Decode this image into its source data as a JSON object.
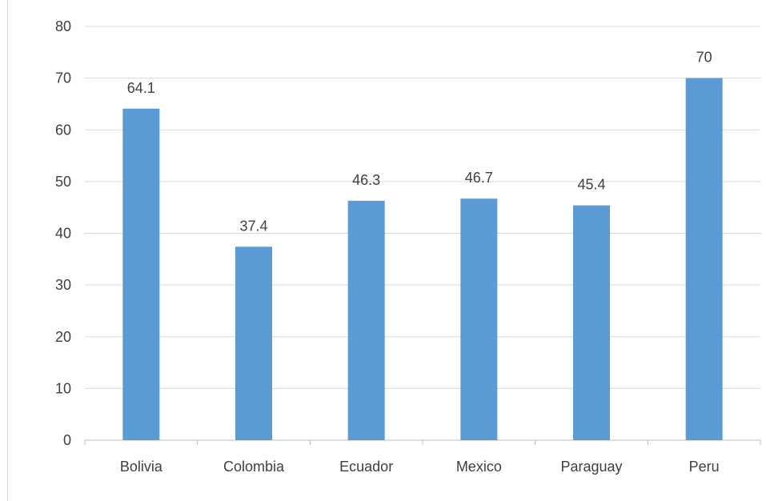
{
  "chart_data": {
    "type": "bar",
    "title": "",
    "xlabel": "",
    "ylabel": "",
    "categories": [
      "Bolivia",
      "Colombia",
      "Ecuador",
      "Mexico",
      "Paraguay",
      "Peru"
    ],
    "values": [
      64.1,
      37.4,
      46.3,
      46.7,
      45.4,
      70
    ],
    "data_labels": [
      "64.1",
      "37.4",
      "46.3",
      "46.7",
      "45.4",
      "70"
    ],
    "ylim": [
      0,
      80
    ],
    "yticks": [
      0,
      10,
      20,
      30,
      40,
      50,
      60,
      70,
      80
    ],
    "grid": true,
    "legend": "none",
    "colors": {
      "bar": "#5b9bd5",
      "grid": "#d9d9d9",
      "axis": "#bfbfbf",
      "text": "#404040"
    }
  }
}
